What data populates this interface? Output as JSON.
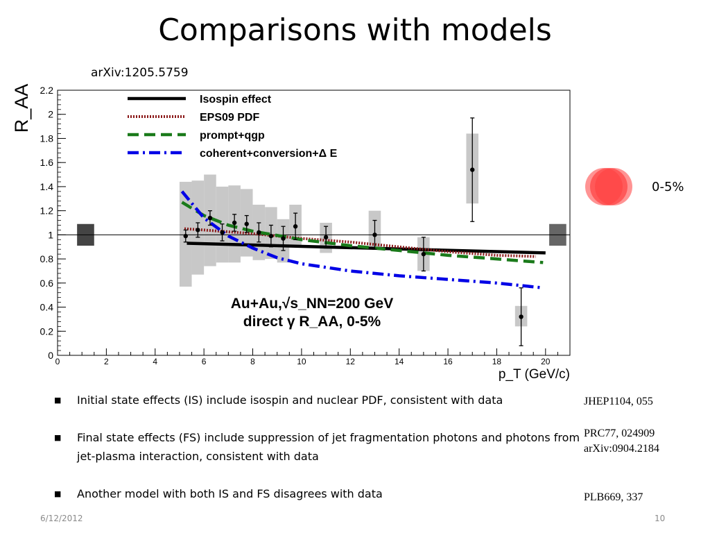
{
  "slide": {
    "title": "Comparisons with models",
    "source": "arXiv:1205.5759",
    "centrality_label": "0-5%",
    "date": "6/12/2012",
    "page_number": "10"
  },
  "bullets": [
    {
      "text": "Initial state effects (IS)  include isospin and nuclear PDF, consistent with data"
    },
    {
      "text": "Final state effects (FS) include suppression of jet fragmentation photons and photons from jet-plasma interaction, consistent with data"
    },
    {
      "text": "Another model with both IS and FS disagrees with data"
    }
  ],
  "references": [
    {
      "text": "JHEP1104, 055"
    },
    {
      "text": "PRC77, 024909"
    },
    {
      "text": "arXiv:0904.2184"
    },
    {
      "text": "PLB669, 337"
    }
  ],
  "chart_data": {
    "type": "scatter",
    "xlabel": "p_T (GeV/c)",
    "ylabel": "R_AA",
    "xlim": [
      0,
      21
    ],
    "ylim": [
      0,
      2.2
    ],
    "x_ticks": [
      0,
      2,
      4,
      6,
      8,
      10,
      12,
      14,
      16,
      18,
      20
    ],
    "y_ticks": [
      0,
      0.2,
      0.4,
      0.6,
      0.8,
      1,
      1.2,
      1.4,
      1.6,
      1.8,
      2,
      2.2
    ],
    "reference_line": 1,
    "annotation": {
      "line1": "Au+Au,√s_NN=200 GeV",
      "line2": "direct γ R_AA, 0-5%"
    },
    "data": {
      "x": [
        5.25,
        5.75,
        6.25,
        6.75,
        7.25,
        7.75,
        8.25,
        8.75,
        9.25,
        9.75,
        11.0,
        13.0,
        15.0,
        17.0,
        19.0
      ],
      "y": [
        0.99,
        1.04,
        1.14,
        1.02,
        1.1,
        1.09,
        1.02,
        0.99,
        0.97,
        1.07,
        0.98,
        1.0,
        0.84,
        1.54,
        0.32
      ],
      "stat_err": [
        0.05,
        0.06,
        0.06,
        0.07,
        0.07,
        0.07,
        0.08,
        0.09,
        0.1,
        0.11,
        0.09,
        0.12,
        0.14,
        0.43,
        0.24
      ],
      "sys_lo": [
        0.57,
        0.67,
        0.74,
        0.77,
        0.77,
        0.82,
        0.79,
        0.8,
        0.77,
        0.91,
        0.85,
        0.88,
        0.7,
        1.26,
        0.24
      ],
      "sys_hi": [
        1.44,
        1.45,
        1.5,
        1.4,
        1.41,
        1.38,
        1.25,
        1.23,
        1.13,
        1.25,
        1.1,
        1.2,
        0.98,
        1.84,
        0.41
      ]
    },
    "normalization_boxes": [
      {
        "x": 1.15,
        "lo": 0.91,
        "hi": 1.09,
        "color": "#444444"
      },
      {
        "x": 20.5,
        "lo": 0.91,
        "hi": 1.09,
        "color": "#666666"
      }
    ],
    "series": [
      {
        "name": "Isospin effect",
        "color": "#000000",
        "style": "solid",
        "x": [
          5.3,
          20.0
        ],
        "y": [
          0.93,
          0.85
        ]
      },
      {
        "name": "EPS09 PDF",
        "color": "#8b1a1a",
        "style": "dotted",
        "x": [
          5.2,
          6,
          8,
          10,
          12,
          14,
          16,
          18,
          19.6
        ],
        "y": [
          1.05,
          1.04,
          1.01,
          0.97,
          0.94,
          0.9,
          0.86,
          0.83,
          0.82
        ]
      },
      {
        "name": "prompt+qgp",
        "color": "#1a7a1a",
        "style": "dashed",
        "x": [
          5.1,
          6,
          7,
          8,
          10,
          12,
          14,
          16,
          18,
          19.9
        ],
        "y": [
          1.27,
          1.16,
          1.08,
          1.03,
          0.96,
          0.91,
          0.87,
          0.83,
          0.8,
          0.77
        ]
      },
      {
        "name": "coherent+conversion+Δ E",
        "color": "#0000e6",
        "style": "dashdot",
        "x": [
          5.1,
          6,
          7,
          8,
          9,
          10,
          12,
          14,
          16,
          18,
          19.9
        ],
        "y": [
          1.36,
          1.14,
          0.99,
          0.89,
          0.81,
          0.76,
          0.7,
          0.66,
          0.63,
          0.6,
          0.56
        ]
      }
    ]
  }
}
